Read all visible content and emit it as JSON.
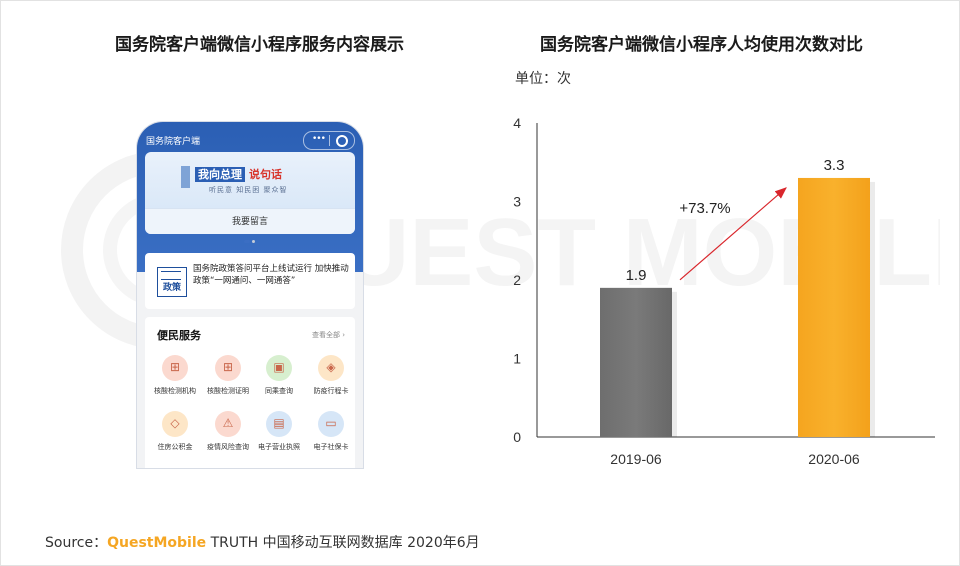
{
  "left_title": "国务院客户端微信小程序服务内容展示",
  "right_title": "国务院客户端微信小程序人均使用次数对比",
  "unit": "单位：次",
  "source": {
    "prefix": "Source：",
    "brand": "QuestMobile",
    "rest": " TRUTH 中国移动互联网数据库 2020年6月"
  },
  "phone": {
    "app_name": "国务院客户端",
    "banner_title_a": "我向总理",
    "banner_title_b": "说句话",
    "banner_sub": "听民意  知民困  聚众智",
    "banner_button": "我要留言",
    "news_icon_text": "政策",
    "news_text": "国务院政策答问平台上线试运行 加快推动政策“一网通问、一网通答”",
    "services_title": "便民服务",
    "services_more": "查看全部 ›",
    "services": [
      {
        "label": "核酸检测机构",
        "icon": "hospital-icon",
        "color": "#fbd9cf",
        "glyph": "⊞"
      },
      {
        "label": "核酸检测证明",
        "icon": "hospital-icon",
        "color": "#fbd9cf",
        "glyph": "⊞"
      },
      {
        "label": "同乘查询",
        "icon": "train-icon",
        "color": "#d7efcf",
        "glyph": "▣"
      },
      {
        "label": "防疫行程卡",
        "icon": "package-icon",
        "color": "#fde6c7",
        "glyph": "◈"
      },
      {
        "label": "住房公积金",
        "icon": "box-icon",
        "color": "#fde6c7",
        "glyph": "◇"
      },
      {
        "label": "疫情风险查询",
        "icon": "warning-icon",
        "color": "#fbd9cf",
        "glyph": "⚠"
      },
      {
        "label": "电子营业执照",
        "icon": "license-icon",
        "color": "#d6e6f7",
        "glyph": "▤"
      },
      {
        "label": "电子社保卡",
        "icon": "card-icon",
        "color": "#d6e6f7",
        "glyph": "▭"
      }
    ]
  },
  "chart_data": {
    "type": "bar",
    "title": "国务院客户端微信小程序人均使用次数对比",
    "unit": "单位：次",
    "categories": [
      "2019-06",
      "2020-06"
    ],
    "values": [
      1.9,
      3.3
    ],
    "value_labels": [
      "1.9",
      "3.3"
    ],
    "bar_colors": [
      "#7a7a7a",
      "#f9b12c"
    ],
    "yticks": [
      0,
      1,
      2,
      3,
      4
    ],
    "ylim": [
      0,
      4
    ],
    "annotation": "+73.7%",
    "annotation_color": "#d9262c",
    "grid": false
  }
}
